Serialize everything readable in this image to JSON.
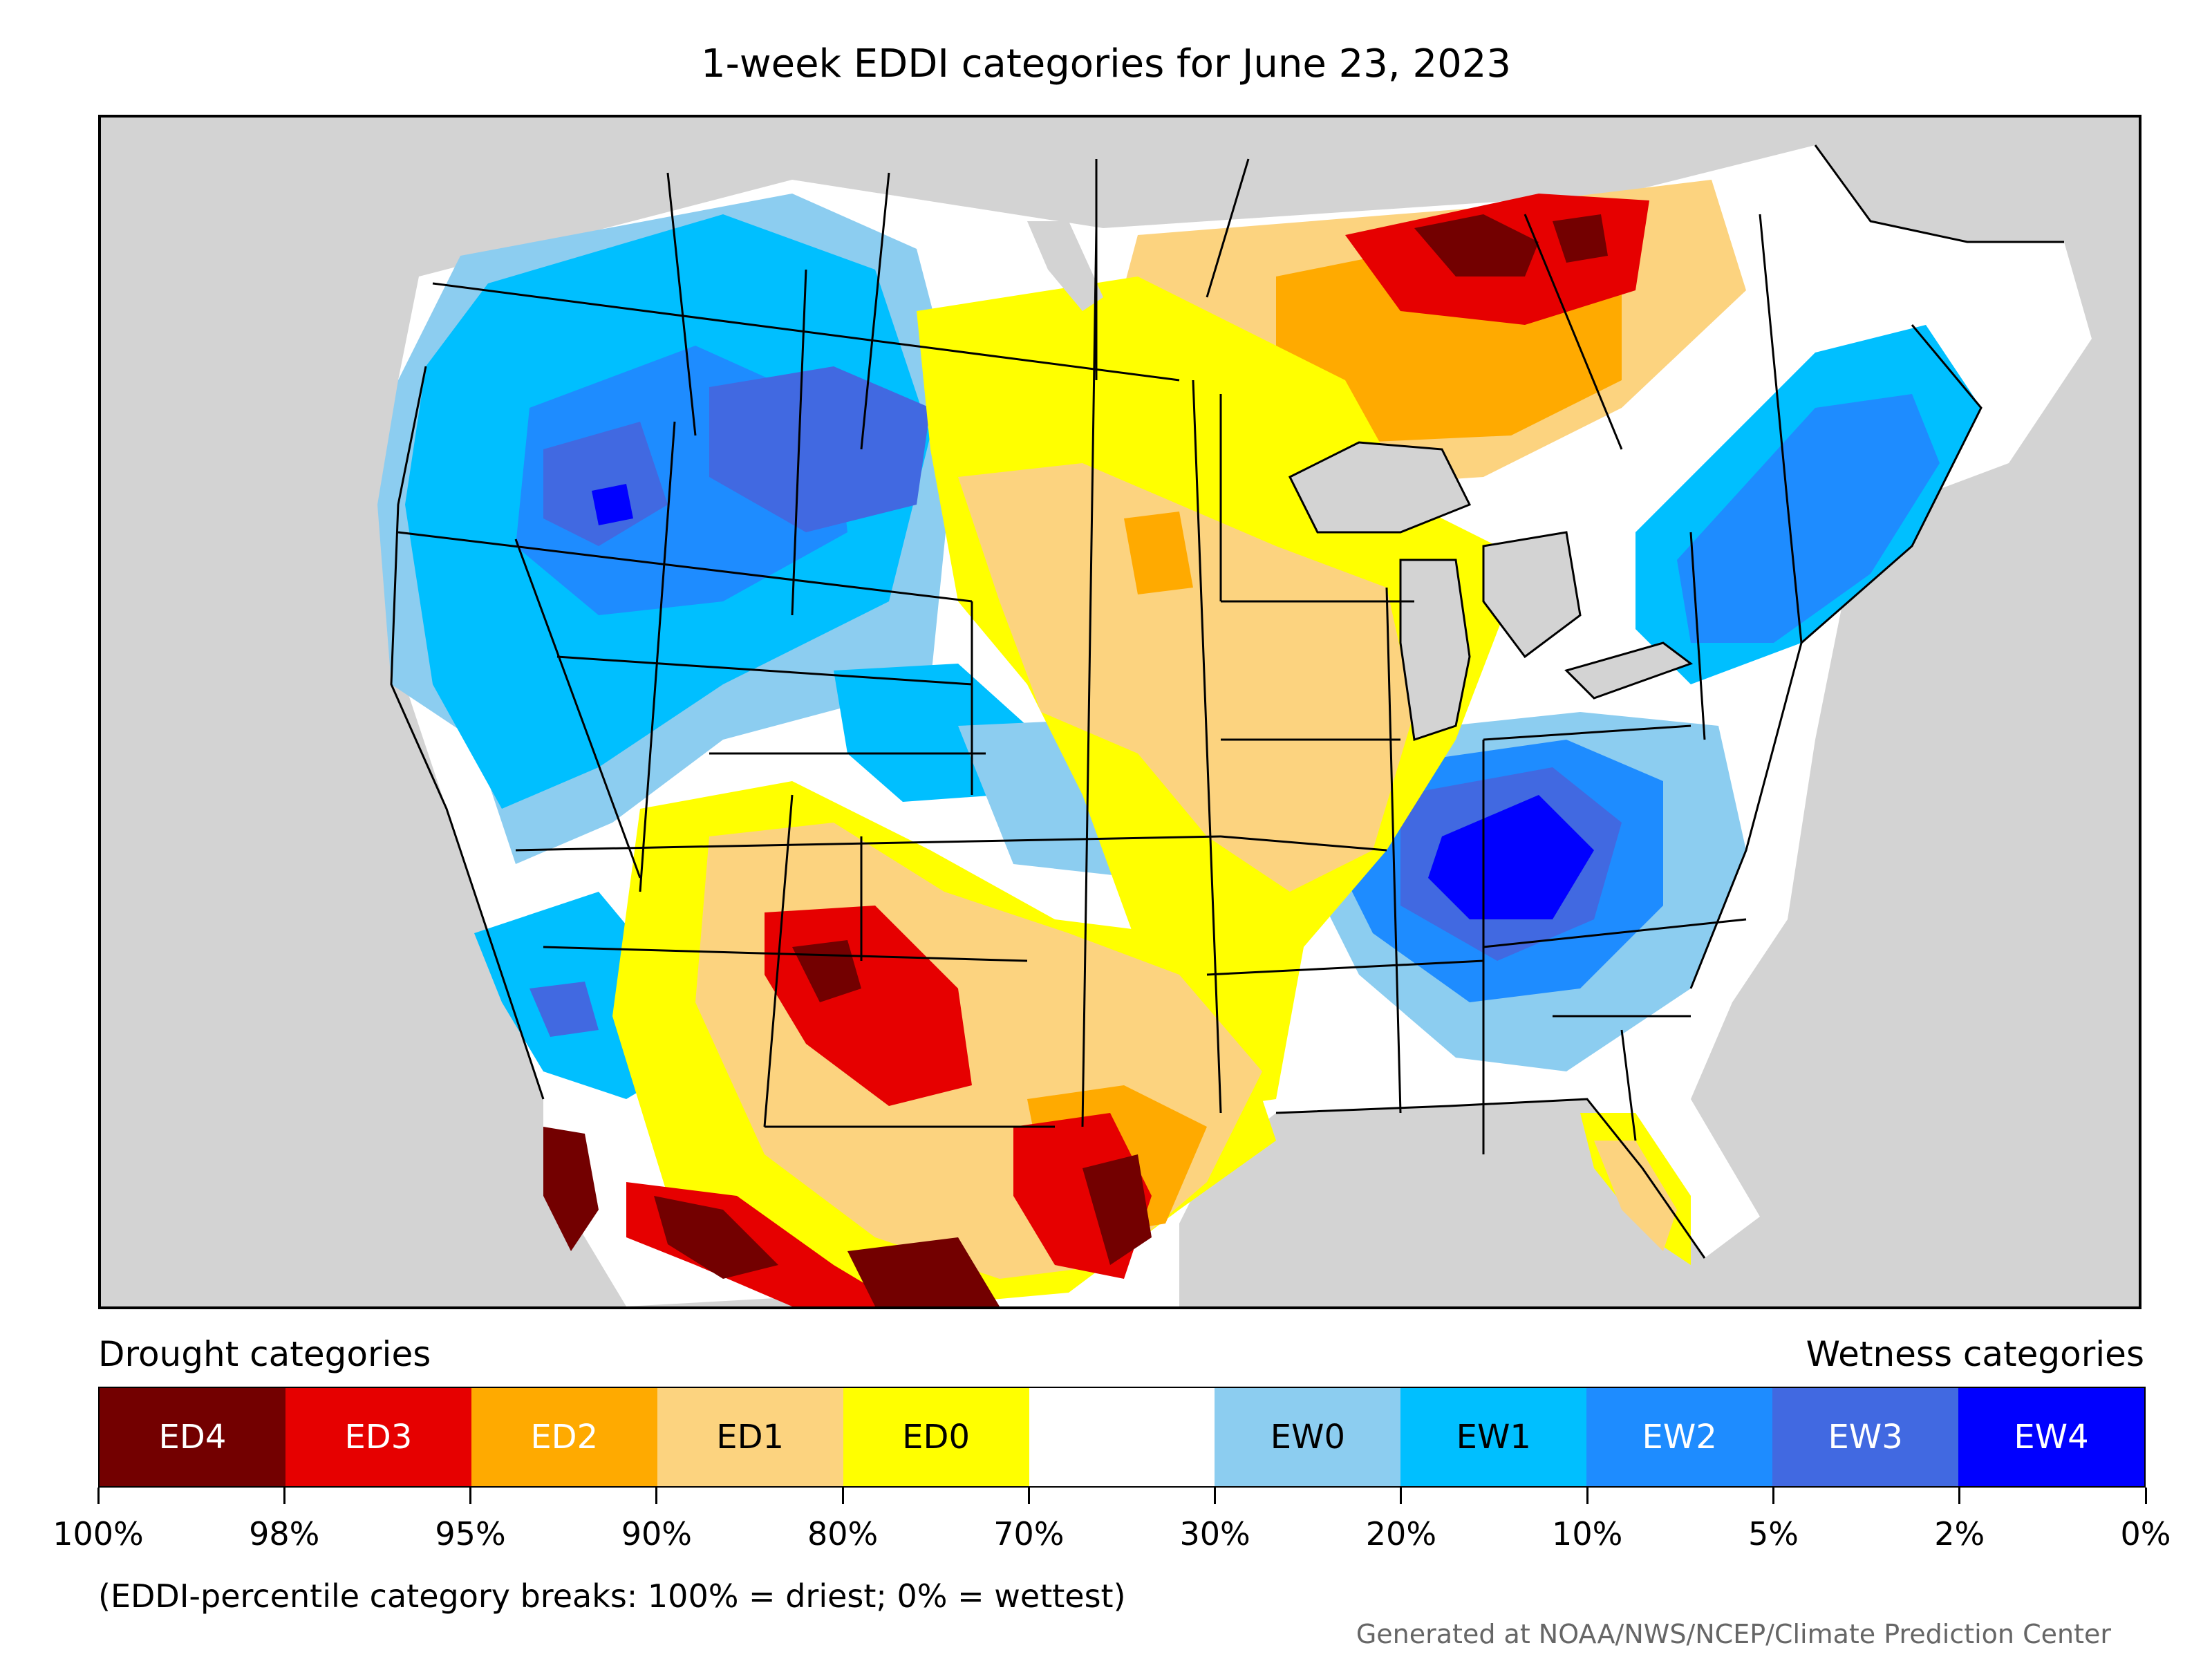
{
  "title": "1-week EDDI categories for June 23, 2023",
  "legend": {
    "drought_header": "Drought categories",
    "wetness_header": "Wetness categories",
    "categories": [
      {
        "label": "ED4",
        "color": "#730000",
        "text_color": "#ffffff"
      },
      {
        "label": "ED3",
        "color": "#e60000",
        "text_color": "#ffffff"
      },
      {
        "label": "ED2",
        "color": "#ffaa00",
        "text_color": "#ffffff"
      },
      {
        "label": "ED1",
        "color": "#fcd37f",
        "text_color": "#000000"
      },
      {
        "label": "ED0",
        "color": "#ffff00",
        "text_color": "#000000"
      },
      {
        "label": "",
        "color": "#ffffff",
        "text_color": "#000000"
      },
      {
        "label": "EW0",
        "color": "#8ccdf0",
        "text_color": "#000000"
      },
      {
        "label": "EW1",
        "color": "#00bfff",
        "text_color": "#000000"
      },
      {
        "label": "EW2",
        "color": "#1e8cff",
        "text_color": "#ffffff"
      },
      {
        "label": "EW3",
        "color": "#4169e1",
        "text_color": "#ffffff"
      },
      {
        "label": "EW4",
        "color": "#0000ff",
        "text_color": "#ffffff"
      }
    ],
    "ticks": [
      "100%",
      "98%",
      "95%",
      "90%",
      "80%",
      "70%",
      "30%",
      "20%",
      "10%",
      "5%",
      "2%",
      "0%"
    ]
  },
  "note": "(EDDI-percentile category breaks: 100% = driest; 0% = wettest)",
  "credit": "Generated at NOAA/NWS/NCEP/Climate Prediction Center",
  "colors": {
    "background_land_outside": "#d3d3d3",
    "water": "#d3d3d3",
    "neutral": "#ffffff"
  }
}
